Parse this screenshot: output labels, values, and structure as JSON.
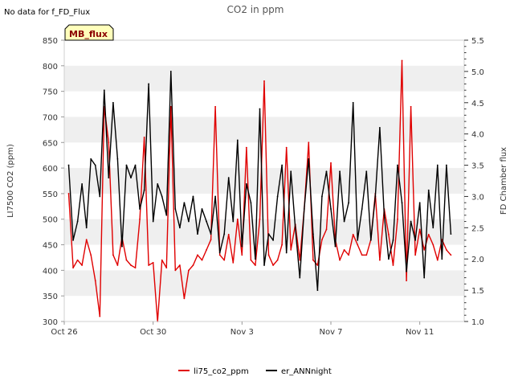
{
  "notice": "No data for f_FD_Flux",
  "badge": "MB_flux",
  "colors": {
    "left_series": "#e00000",
    "right_series": "#000000",
    "band": "#efefef",
    "badge_fill": "#ffffbb",
    "badge_text": "#8b0000"
  },
  "chart_data": {
    "type": "line",
    "title": "CO2 in ppm",
    "xlabel": "",
    "ylabel": "LI7500 CO2 (ppm)",
    "y2label": "FD Chamber flux",
    "xlim": [
      0,
      18
    ],
    "ylim": [
      300,
      850
    ],
    "y2lim": [
      1.0,
      5.5
    ],
    "x_ticks": [
      {
        "value": 0,
        "label": "Oct 26"
      },
      {
        "value": 4,
        "label": "Oct 30"
      },
      {
        "value": 8,
        "label": "Nov 3"
      },
      {
        "value": 12,
        "label": "Nov 7"
      },
      {
        "value": 16,
        "label": "Nov 11"
      }
    ],
    "y_ticks": [
      300,
      350,
      400,
      450,
      500,
      550,
      600,
      650,
      700,
      750,
      800,
      850
    ],
    "y2_ticks": [
      "1.0",
      "1.5",
      "2.0",
      "2.5",
      "3.0",
      "3.5",
      "4.0",
      "4.5",
      "5.0",
      "5.5"
    ],
    "legend_position": "bottom-center",
    "series": [
      {
        "name": "li75_co2_ppm",
        "axis": "left",
        "x": [
          0.2,
          0.4,
          0.6,
          0.8,
          1.0,
          1.2,
          1.4,
          1.6,
          1.8,
          2.0,
          2.2,
          2.4,
          2.6,
          2.8,
          3.0,
          3.2,
          3.4,
          3.6,
          3.8,
          4.0,
          4.2,
          4.4,
          4.6,
          4.8,
          5.0,
          5.2,
          5.4,
          5.6,
          5.8,
          6.0,
          6.2,
          6.4,
          6.6,
          6.8,
          7.0,
          7.2,
          7.4,
          7.6,
          7.8,
          8.0,
          8.2,
          8.4,
          8.6,
          8.8,
          9.0,
          9.2,
          9.4,
          9.6,
          9.8,
          10.0,
          10.2,
          10.4,
          10.6,
          10.8,
          11.0,
          11.2,
          11.4,
          11.6,
          11.8,
          12.0,
          12.2,
          12.4,
          12.6,
          12.8,
          13.0,
          13.2,
          13.4,
          13.6,
          13.8,
          14.0,
          14.2,
          14.4,
          14.6,
          14.8,
          15.0,
          15.2,
          15.4,
          15.6,
          15.8,
          16.0,
          16.2,
          16.4,
          16.6,
          16.8,
          17.0,
          17.2,
          17.4
        ],
        "values": [
          550,
          405,
          420,
          410,
          460,
          430,
          380,
          310,
          720,
          650,
          430,
          410,
          465,
          420,
          410,
          405,
          500,
          660,
          410,
          415,
          300,
          420,
          405,
          720,
          400,
          410,
          345,
          400,
          410,
          430,
          420,
          440,
          460,
          720,
          430,
          420,
          470,
          415,
          500,
          430,
          640,
          420,
          410,
          500,
          770,
          430,
          410,
          420,
          450,
          640,
          440,
          490,
          420,
          520,
          650,
          420,
          410,
          460,
          480,
          610,
          460,
          420,
          440,
          430,
          470,
          450,
          430,
          430,
          460,
          550,
          420,
          520,
          470,
          410,
          500,
          810,
          380,
          720,
          430,
          480,
          440,
          470,
          450,
          420,
          460,
          440,
          430
        ]
      },
      {
        "name": "er_ANNnight",
        "axis": "right",
        "x": [
          0.2,
          0.4,
          0.6,
          0.8,
          1.0,
          1.2,
          1.4,
          1.6,
          1.8,
          2.0,
          2.2,
          2.4,
          2.6,
          2.8,
          3.0,
          3.2,
          3.4,
          3.6,
          3.8,
          4.0,
          4.2,
          4.4,
          4.6,
          4.8,
          5.0,
          5.2,
          5.4,
          5.6,
          5.8,
          6.0,
          6.2,
          6.4,
          6.6,
          6.8,
          7.0,
          7.2,
          7.4,
          7.6,
          7.8,
          8.0,
          8.2,
          8.4,
          8.6,
          8.8,
          9.0,
          9.2,
          9.4,
          9.6,
          9.8,
          10.0,
          10.2,
          10.4,
          10.6,
          10.8,
          11.0,
          11.2,
          11.4,
          11.6,
          11.8,
          12.0,
          12.2,
          12.4,
          12.6,
          12.8,
          13.0,
          13.2,
          13.4,
          13.6,
          13.8,
          14.0,
          14.2,
          14.4,
          14.6,
          14.8,
          15.0,
          15.2,
          15.4,
          15.6,
          15.8,
          16.0,
          16.2,
          16.4,
          16.6,
          16.8,
          17.0,
          17.2,
          17.4
        ],
        "values": [
          3.5,
          2.3,
          2.6,
          3.2,
          2.5,
          3.6,
          3.5,
          3.0,
          4.7,
          3.3,
          4.5,
          3.6,
          2.2,
          3.5,
          3.3,
          3.5,
          2.8,
          3.1,
          4.8,
          2.6,
          3.2,
          3.0,
          2.7,
          5.0,
          2.8,
          2.5,
          2.9,
          2.6,
          3.0,
          2.4,
          2.8,
          2.6,
          2.4,
          3.0,
          2.1,
          2.4,
          3.3,
          2.6,
          3.9,
          2.2,
          3.2,
          2.9,
          2.0,
          4.4,
          1.9,
          2.4,
          2.3,
          3.0,
          3.5,
          2.1,
          3.4,
          2.5,
          1.7,
          2.8,
          3.6,
          2.4,
          1.5,
          3.0,
          3.4,
          2.8,
          2.2,
          3.4,
          2.6,
          2.9,
          4.5,
          2.3,
          2.8,
          3.4,
          2.3,
          3.0,
          4.1,
          2.7,
          2.0,
          2.3,
          3.5,
          2.9,
          1.8,
          2.6,
          2.3,
          2.9,
          1.7,
          3.1,
          2.5,
          3.5,
          2.0,
          3.5,
          2.4
        ]
      }
    ]
  }
}
